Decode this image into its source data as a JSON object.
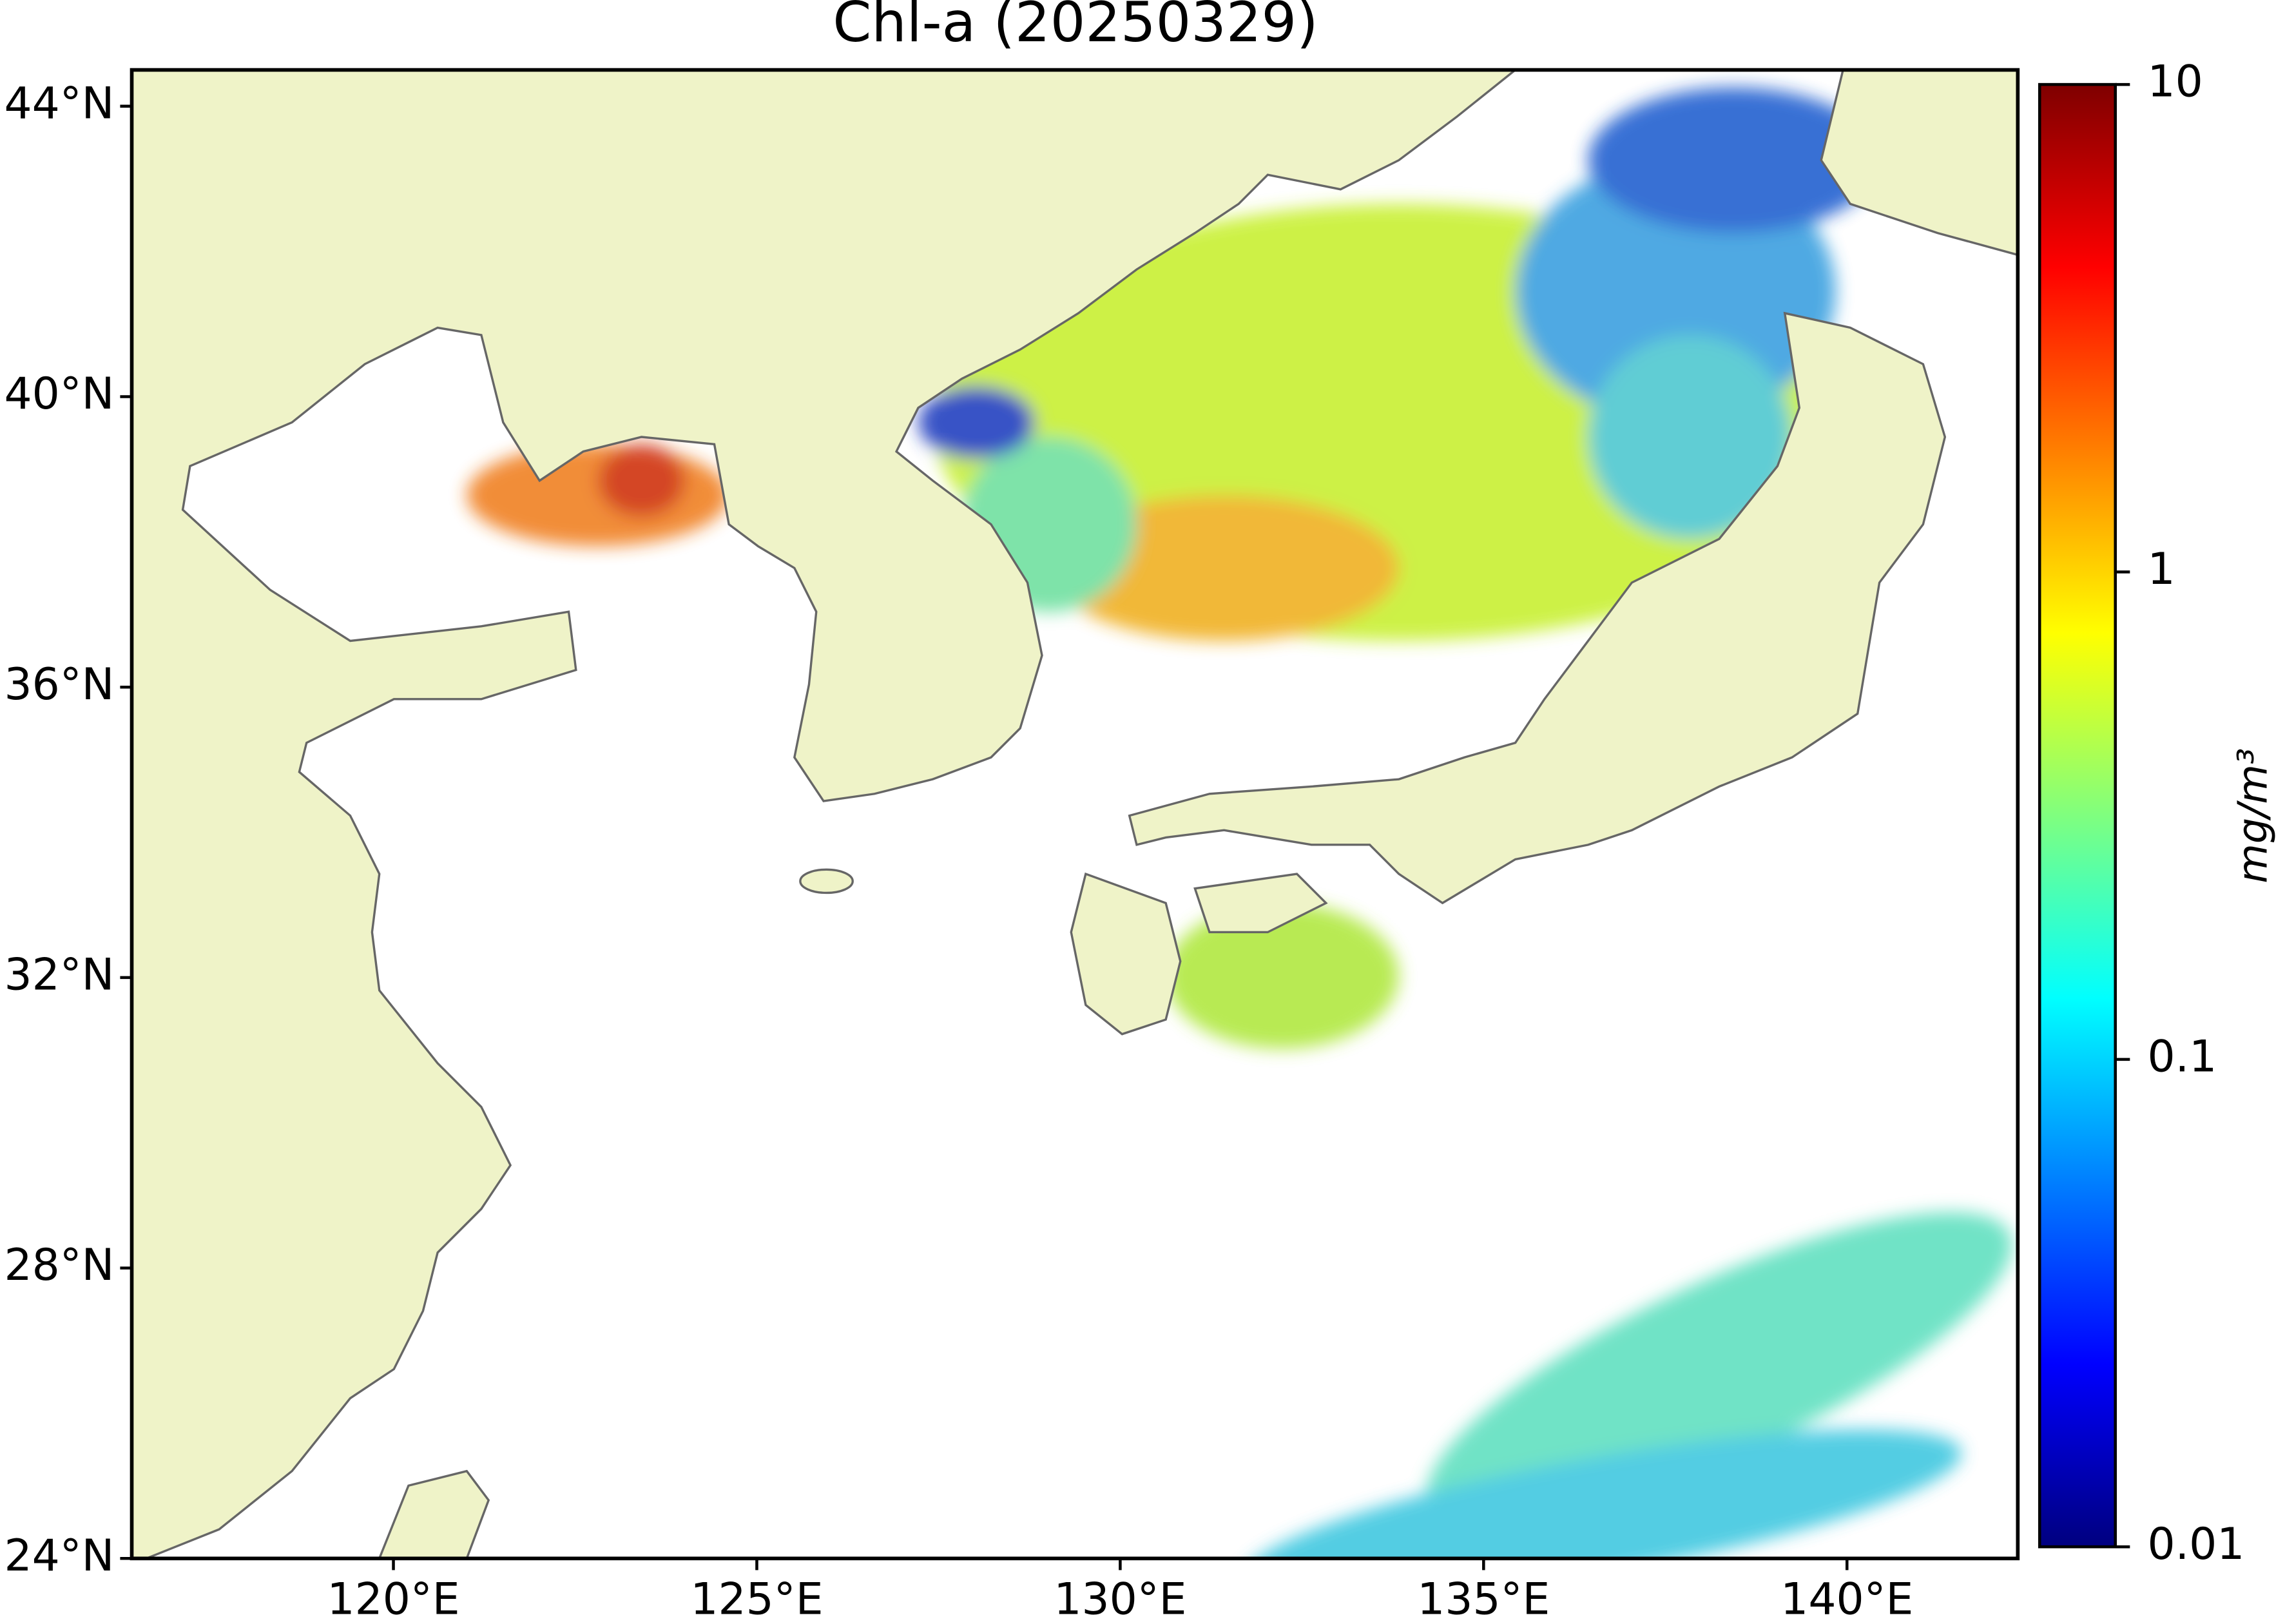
{
  "chart_data": {
    "type": "map",
    "title": "Chl-a (20250329)",
    "xlim": [
      116.4,
      142.35
    ],
    "ylim": [
      24,
      44.5
    ],
    "xticks": [
      {
        "value": 120,
        "label": "120°E"
      },
      {
        "value": 125,
        "label": "125°E"
      },
      {
        "value": 130,
        "label": "130°E"
      },
      {
        "value": 135,
        "label": "135°E"
      },
      {
        "value": 140,
        "label": "140°E"
      }
    ],
    "yticks": [
      {
        "value": 24,
        "label": "24°N"
      },
      {
        "value": 28,
        "label": "28°N"
      },
      {
        "value": 32,
        "label": "32°N"
      },
      {
        "value": 36,
        "label": "36°N"
      },
      {
        "value": 40,
        "label": "40°N"
      },
      {
        "value": 44,
        "label": "44°N"
      }
    ],
    "colorbar": {
      "label": "mg/m³",
      "scale": "log",
      "lim": [
        0.01,
        10
      ],
      "ticks": [
        0.01,
        0.1,
        1,
        10
      ],
      "colormap": "jet"
    }
  }
}
